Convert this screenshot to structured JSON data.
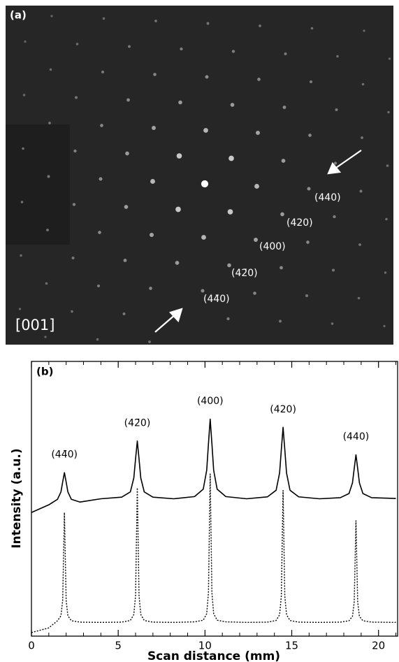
{
  "image_panel": {
    "label": "(a)",
    "zone_axis": "[001]",
    "spot_labels": [
      "(440)",
      "(420)",
      "(400)",
      "(42̄0)",
      "(44̄0)"
    ]
  },
  "chart_data": {
    "type": "line",
    "panel_label": "(b)",
    "x_label": "Scan distance (mm)",
    "y_label": "Intensity (a.u.)",
    "x": [
      0,
      1,
      1.5,
      1.7,
      1.8,
      1.9,
      2.0,
      2.1,
      2.3,
      2.8,
      4,
      5.2,
      5.7,
      5.9,
      6.0,
      6.1,
      6.2,
      6.3,
      6.5,
      7.0,
      8.2,
      9.4,
      9.9,
      10.1,
      10.2,
      10.3,
      10.4,
      10.5,
      10.7,
      11.2,
      12.4,
      13.6,
      14.1,
      14.3,
      14.4,
      14.5,
      14.6,
      14.7,
      14.9,
      15.4,
      16.6,
      17.8,
      18.3,
      18.5,
      18.6,
      18.7,
      18.8,
      18.9,
      19.1,
      19.6,
      21
    ],
    "series": [
      {
        "color": "#000000",
        "dash": "solid",
        "values": [
          45,
          47.8,
          49.8,
          52.5,
          56.1,
          59.5,
          56.1,
          52.5,
          49.8,
          48.8,
          50,
          50.6,
          52.5,
          57.6,
          64.5,
          71,
          64.5,
          57.6,
          52.5,
          50.6,
          50,
          50.8,
          53.5,
          60.4,
          70,
          79,
          70,
          60.4,
          53.5,
          50.8,
          50,
          50.7,
          53.1,
          59.4,
          67.9,
          76,
          67.9,
          59.4,
          53.1,
          50.7,
          50,
          50.4,
          51.9,
          55.8,
          61,
          66,
          61,
          55.8,
          51.9,
          50.4,
          50.1
        ]
      },
      {
        "color": "#000000",
        "dash": "dotted",
        "values": [
          1.3,
          3,
          5.6,
          7.4,
          13,
          45,
          13,
          7.4,
          5.6,
          5.1,
          5,
          5.1,
          5.7,
          7.9,
          14.8,
          54,
          14.8,
          7.9,
          5.7,
          5.1,
          5,
          5.2,
          5.8,
          8.2,
          15.8,
          59,
          15.8,
          8.2,
          5.8,
          5.2,
          5,
          5.1,
          5.7,
          7.8,
          14.6,
          53,
          14.6,
          7.8,
          5.7,
          5.1,
          5,
          5.1,
          5.6,
          7.2,
          12.4,
          42,
          12.4,
          7.2,
          5.6,
          5.1,
          5
        ]
      }
    ],
    "annotations": [
      {
        "text": "(44̄0)",
        "x": 1.9,
        "y": 66
      },
      {
        "text": "(42̄0)",
        "x": 6.1,
        "y": 77.5
      },
      {
        "text": "(400)",
        "x": 10.3,
        "y": 85.5
      },
      {
        "text": "(420)",
        "x": 14.5,
        "y": 82.5
      },
      {
        "text": "(440)",
        "x": 18.7,
        "y": 72.5
      }
    ],
    "xlim": [
      0,
      21.1
    ],
    "ylim": [
      0,
      100
    ],
    "xticks": [
      0,
      5,
      10,
      15,
      20
    ],
    "xminorticks": [
      1,
      2,
      3,
      4,
      6,
      7,
      8,
      9,
      11,
      12,
      13,
      14,
      16,
      17,
      18,
      19,
      21
    ]
  }
}
